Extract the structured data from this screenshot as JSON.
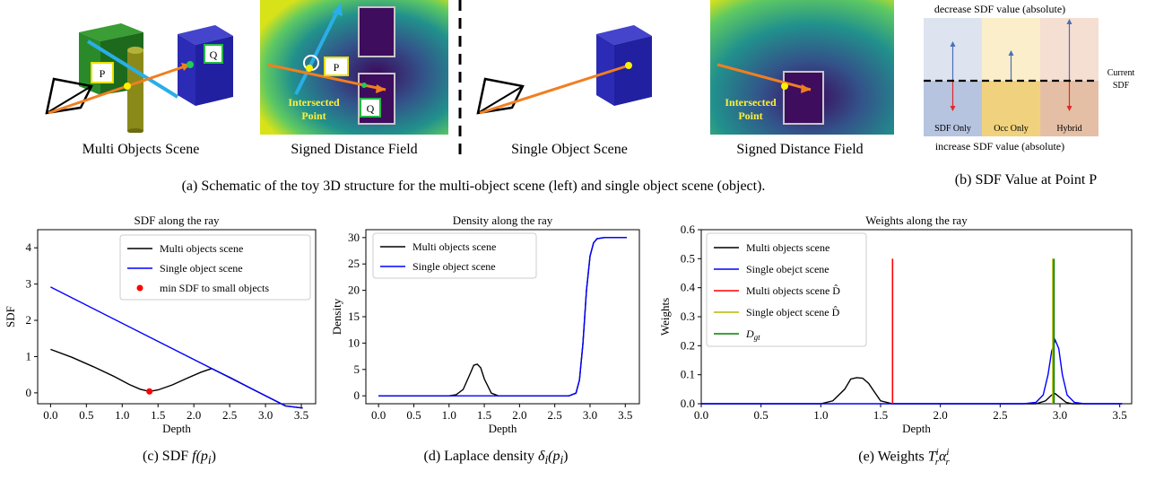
{
  "top": {
    "labels": {
      "P": "P",
      "Q": "Q",
      "intersected_line1": "Intersected",
      "intersected_line2": "Point"
    },
    "captions": {
      "multi_scene": "Multi Objects Scene",
      "sdf1": "Signed Distance Field",
      "single_scene": "Single Object Scene",
      "sdf2": "Signed Distance Field",
      "a": "(a) Schematic of the toy 3D structure for the multi-object scene (left) and single object scene (object).",
      "b": "(b) SDF Value at Point P"
    },
    "panel_b": {
      "top_label": "decrease SDF value (absolute)",
      "bottom_label": "increase SDF value (absolute)",
      "current_line1": "Current",
      "current_line2": "SDF",
      "columns": [
        "SDF Only",
        "Occ Only",
        "Hybrid"
      ],
      "colors": {
        "top": [
          "#dde3ef",
          "#fbeecb",
          "#f5ded2"
        ],
        "bottom": [
          "#b6c4df",
          "#f0d27e",
          "#e5bfa5"
        ],
        "up_arrow": "#4a6fb5",
        "down_arrow": "#e0282c"
      }
    }
  },
  "captions": {
    "c_prefix": "(c) SDF ",
    "c_math": "f(p",
    "c_sub": "i",
    "c_close": ")",
    "d_prefix": "(d) Laplace density ",
    "d_math": "δ",
    "d_sub": "i",
    "d_math2": "(p",
    "d_sub2": "i",
    "d_close": ")",
    "e_prefix": "(e) Weights ",
    "e_T": "T",
    "e_T_sup": "i",
    "e_T_sub": "r",
    "e_alpha": "α",
    "e_alpha_sup": "i",
    "e_alpha_sub": "r"
  },
  "chart_data": [
    {
      "type": "line",
      "title": "SDF along the ray",
      "xlabel": "Depth",
      "ylabel": "SDF",
      "xlim": [
        -0.18,
        3.7
      ],
      "ylim": [
        -0.3,
        4.5
      ],
      "xticks": [
        "0.0",
        "0.5",
        "1.0",
        "1.5",
        "2.0",
        "2.5",
        "3.0",
        "3.5"
      ],
      "yticks": [
        "0",
        "1",
        "2",
        "3",
        "4"
      ],
      "legend_position": "top-right",
      "series": [
        {
          "name": "Multi objects scene",
          "color": "#000000",
          "x": [
            0.0,
            0.3,
            0.6,
            0.9,
            1.1,
            1.25,
            1.38,
            1.5,
            1.7,
            1.9,
            2.1,
            2.25,
            2.5,
            2.8,
            3.0,
            3.28,
            3.52
          ],
          "y": [
            1.2,
            0.98,
            0.72,
            0.44,
            0.23,
            0.1,
            0.04,
            0.08,
            0.22,
            0.4,
            0.57,
            0.67,
            0.43,
            0.12,
            -0.08,
            -0.36,
            -0.42
          ]
        },
        {
          "name": "Single object scene",
          "color": "#0000ff",
          "x": [
            0.0,
            3.28,
            3.52
          ],
          "y": [
            2.92,
            -0.36,
            -0.42
          ]
        },
        {
          "name": "min SDF to small objects",
          "color": "#ff0000",
          "marker": "dot",
          "x": [
            1.38
          ],
          "y": [
            0.04
          ]
        }
      ]
    },
    {
      "type": "line",
      "title": "Density along the ray",
      "xlabel": "Depth",
      "ylabel": "Density",
      "xlim": [
        -0.18,
        3.7
      ],
      "ylim": [
        -1.5,
        31.5
      ],
      "xticks": [
        "0.0",
        "0.5",
        "1.0",
        "1.5",
        "2.0",
        "2.5",
        "3.0",
        "3.5"
      ],
      "yticks": [
        "0",
        "5",
        "10",
        "15",
        "20",
        "25",
        "30"
      ],
      "legend_position": "top-left",
      "series": [
        {
          "name": "Multi objects scene",
          "color": "#000000",
          "x": [
            0.0,
            1.0,
            1.1,
            1.2,
            1.3,
            1.35,
            1.4,
            1.45,
            1.5,
            1.6,
            1.7,
            2.7,
            2.8,
            2.85,
            2.9,
            2.95,
            3.0,
            3.05,
            3.1,
            3.2,
            3.52
          ],
          "y": [
            0,
            0,
            0.2,
            1.2,
            4.2,
            5.8,
            6.0,
            5.3,
            3.2,
            0.5,
            0,
            0,
            0.5,
            3,
            10,
            20,
            26.5,
            29,
            29.8,
            30,
            30
          ]
        },
        {
          "name": "Single object scene",
          "color": "#0000ff",
          "x": [
            0.0,
            2.7,
            2.8,
            2.85,
            2.9,
            2.95,
            3.0,
            3.05,
            3.1,
            3.2,
            3.52
          ],
          "y": [
            0,
            0,
            0.5,
            3,
            10,
            20,
            26.5,
            29,
            29.8,
            30,
            30
          ]
        }
      ]
    },
    {
      "type": "line",
      "title": "Weights along the ray",
      "xlabel": "Depth",
      "ylabel": "Weights",
      "xlim": [
        0.0,
        3.6
      ],
      "ylim": [
        0.0,
        0.6
      ],
      "xticks": [
        "0.0",
        "0.5",
        "1.0",
        "1.5",
        "2.0",
        "2.5",
        "3.0",
        "3.5"
      ],
      "yticks": [
        "0.0",
        "0.1",
        "0.2",
        "0.3",
        "0.4",
        "0.5",
        "0.6"
      ],
      "legend_position": "top-left",
      "series": [
        {
          "name": "Multi objects scene",
          "color": "#000000",
          "x": [
            0.0,
            1.0,
            1.1,
            1.2,
            1.25,
            1.3,
            1.35,
            1.4,
            1.45,
            1.5,
            1.6,
            1.7,
            2.8,
            2.88,
            2.93,
            2.96,
            2.99,
            3.05,
            3.1,
            3.52
          ],
          "y": [
            0,
            0,
            0.01,
            0.05,
            0.085,
            0.09,
            0.088,
            0.07,
            0.04,
            0.01,
            0,
            0,
            0,
            0.01,
            0.03,
            0.035,
            0.025,
            0.005,
            0,
            0
          ]
        },
        {
          "name": "Single obejct scene",
          "color": "#0000ff",
          "x": [
            0.0,
            2.7,
            2.8,
            2.86,
            2.9,
            2.93,
            2.96,
            2.99,
            3.02,
            3.06,
            3.12,
            3.2,
            3.52
          ],
          "y": [
            0,
            0,
            0.005,
            0.03,
            0.1,
            0.18,
            0.22,
            0.19,
            0.1,
            0.03,
            0.005,
            0,
            0
          ]
        },
        {
          "name": "Multi objects scene D̂",
          "color": "#ff0000",
          "vline_x": 1.6,
          "vline_top": 0.5
        },
        {
          "name": "Single object scene D̂",
          "color": "#b5b800",
          "vline_x": 2.94,
          "vline_top": 0.5
        },
        {
          "name": "D_gt",
          "color": "#008000",
          "vline_x": 2.95,
          "vline_top": 0.5
        }
      ]
    }
  ]
}
